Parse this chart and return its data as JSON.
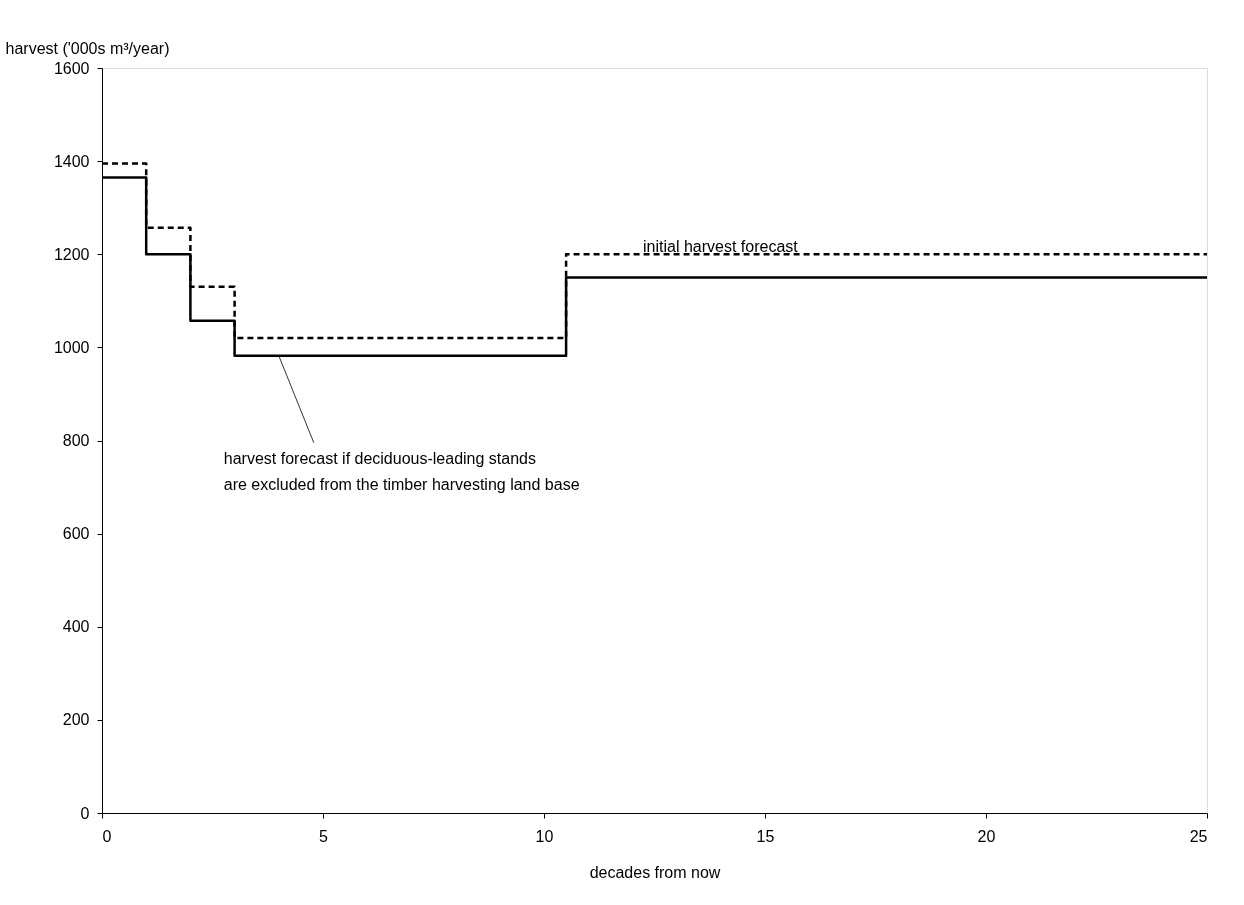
{
  "chart_data": {
    "type": "step",
    "xlabel": "decades from now",
    "ylabel": "harvest ('000s m³/year)",
    "x": [
      0,
      1,
      2,
      3,
      10.5,
      25
    ],
    "series": [
      {
        "name": "initial harvest forecast",
        "color": "#000000",
        "line_style": "dashed",
        "values": [
          1395,
          1257,
          1130,
          1020,
          1200,
          1200
        ]
      },
      {
        "name": "harvest forecast if deciduous-leading stands are excluded from the timber harvesting land base",
        "color": "#000000",
        "line_style": "solid",
        "values": [
          1365,
          1200,
          1057,
          982,
          1150,
          1150
        ]
      }
    ],
    "xlim": [
      0,
      25
    ],
    "xticks": [
      0,
      5,
      10,
      15,
      20,
      25
    ],
    "ylim": [
      0,
      1600
    ],
    "yticks": [
      0,
      200,
      400,
      600,
      800,
      1000,
      1200,
      1400,
      1600
    ],
    "grid": false
  }
}
